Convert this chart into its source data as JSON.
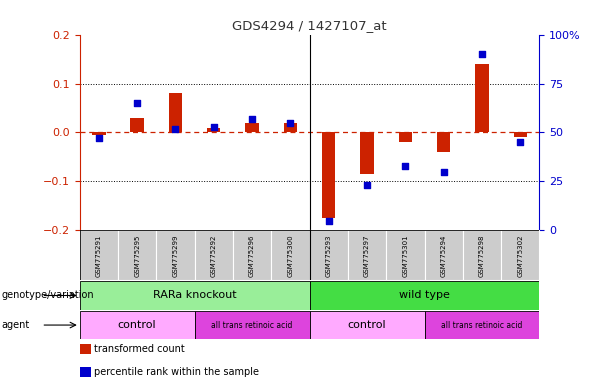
{
  "title": "GDS4294 / 1427107_at",
  "samples": [
    "GSM775291",
    "GSM775295",
    "GSM775299",
    "GSM775292",
    "GSM775296",
    "GSM775300",
    "GSM775293",
    "GSM775297",
    "GSM775301",
    "GSM775294",
    "GSM775298",
    "GSM775302"
  ],
  "bar_values": [
    -0.005,
    0.03,
    0.08,
    0.01,
    0.02,
    0.02,
    -0.175,
    -0.085,
    -0.02,
    -0.04,
    0.14,
    -0.01
  ],
  "dot_values": [
    47,
    65,
    52,
    53,
    57,
    55,
    5,
    23,
    33,
    30,
    90,
    45
  ],
  "ylim_left": [
    -0.2,
    0.2
  ],
  "ylim_right": [
    0,
    100
  ],
  "yticks_left": [
    -0.2,
    -0.1,
    0.0,
    0.1,
    0.2
  ],
  "yticks_right": [
    0,
    25,
    50,
    75,
    100
  ],
  "ytick_labels_right": [
    "0",
    "25",
    "50",
    "75",
    "100%"
  ],
  "bar_color": "#cc2200",
  "dot_color": "#0000cc",
  "zero_line_color": "#cc2200",
  "title_color": "#333333",
  "genotype_groups": [
    {
      "label": "RARa knockout",
      "start": 0,
      "end": 6,
      "color": "#99ee99"
    },
    {
      "label": "wild type",
      "start": 6,
      "end": 12,
      "color": "#44dd44"
    }
  ],
  "agent_groups": [
    {
      "label": "control",
      "start": 0,
      "end": 3,
      "color": "#ffaaff"
    },
    {
      "label": "all trans retinoic acid",
      "start": 3,
      "end": 6,
      "color": "#dd44dd"
    },
    {
      "label": "control",
      "start": 6,
      "end": 9,
      "color": "#ffaaff"
    },
    {
      "label": "all trans retinoic acid",
      "start": 9,
      "end": 12,
      "color": "#dd44dd"
    }
  ],
  "legend_items": [
    {
      "label": "transformed count",
      "color": "#cc2200"
    },
    {
      "label": "percentile rank within the sample",
      "color": "#0000cc"
    }
  ],
  "geno_label": "genotype/variation",
  "agent_label": "agent",
  "tick_bg_color": "#cccccc",
  "bar_width": 0.35,
  "dot_size": 18
}
